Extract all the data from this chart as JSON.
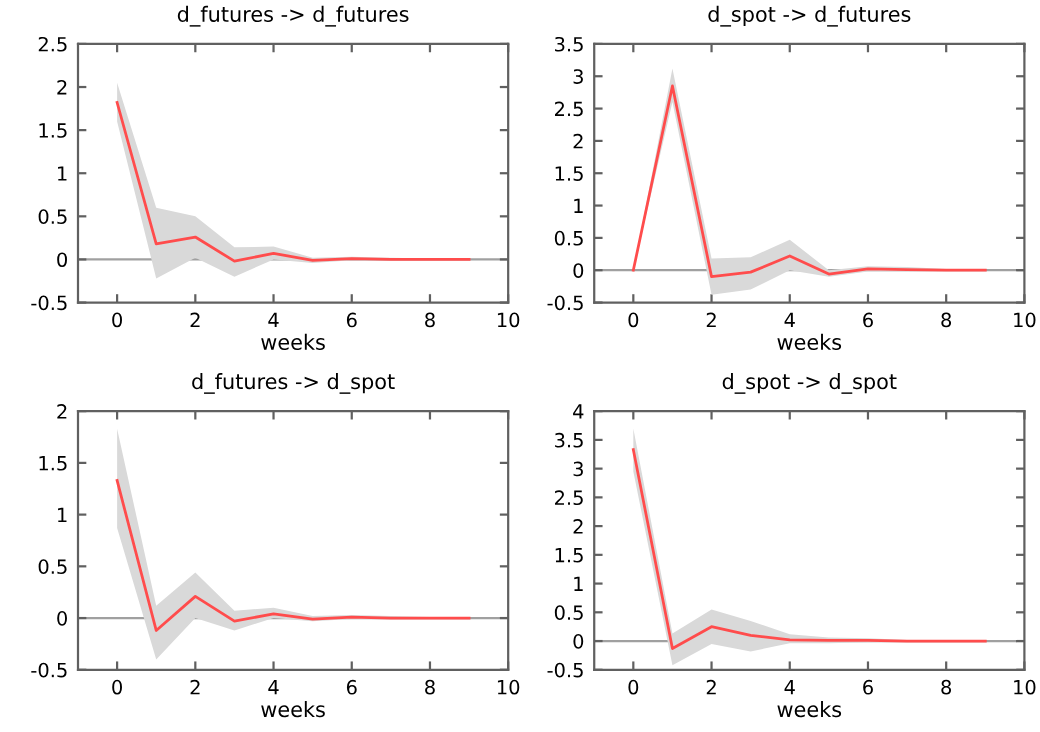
{
  "chart_data": [
    {
      "type": "line",
      "title": "d_futures -> d_futures",
      "xlabel": "weeks",
      "x": [
        0,
        1,
        2,
        3,
        4,
        5,
        6,
        7,
        8,
        9
      ],
      "xlim": [
        -1,
        10
      ],
      "xticks": [
        0,
        2,
        4,
        6,
        8,
        10
      ],
      "ylim": [
        -0.5,
        2.5
      ],
      "yticks": [
        -0.5,
        0,
        0.5,
        1,
        1.5,
        2,
        2.5
      ],
      "grid": false,
      "legend": false,
      "series": [
        {
          "color": "#ff4c4c",
          "values": [
            1.82,
            0.18,
            0.26,
            -0.02,
            0.07,
            -0.01,
            0.01,
            0,
            0,
            0
          ],
          "lower": [
            1.6,
            -0.22,
            0.02,
            -0.2,
            0.0,
            -0.04,
            -0.01,
            -0.01,
            -0.01,
            -0.01
          ],
          "upper": [
            2.05,
            0.6,
            0.5,
            0.14,
            0.15,
            0.02,
            0.03,
            0.02,
            0.01,
            0.01
          ]
        }
      ],
      "ref_lines": [
        {
          "axis": "y",
          "value": 0,
          "color": "#a0a0a0"
        }
      ]
    },
    {
      "type": "line",
      "title": "d_spot -> d_futures",
      "xlabel": "weeks",
      "x": [
        0,
        1,
        2,
        3,
        4,
        5,
        6,
        7,
        8,
        9
      ],
      "xlim": [
        -1,
        10
      ],
      "xticks": [
        0,
        2,
        4,
        6,
        8,
        10
      ],
      "ylim": [
        -0.5,
        3.5
      ],
      "yticks": [
        -0.5,
        0,
        0.5,
        1,
        1.5,
        2,
        2.5,
        3,
        3.5
      ],
      "grid": false,
      "legend": false,
      "series": [
        {
          "color": "#ff4c4c",
          "values": [
            0,
            2.85,
            -0.1,
            -0.03,
            0.22,
            -0.06,
            0.02,
            0.01,
            0,
            0
          ],
          "lower": [
            0,
            2.6,
            -0.38,
            -0.3,
            0.0,
            -0.1,
            -0.02,
            -0.02,
            -0.01,
            -0.01
          ],
          "upper": [
            0,
            3.12,
            0.18,
            0.2,
            0.47,
            0.0,
            0.06,
            0.05,
            0.02,
            0.01
          ]
        }
      ],
      "ref_lines": [
        {
          "axis": "y",
          "value": 0,
          "color": "#a0a0a0"
        }
      ]
    },
    {
      "type": "line",
      "title": "d_futures -> d_spot",
      "xlabel": "weeks",
      "x": [
        0,
        1,
        2,
        3,
        4,
        5,
        6,
        7,
        8,
        9
      ],
      "xlim": [
        -1,
        10
      ],
      "xticks": [
        0,
        2,
        4,
        6,
        8,
        10
      ],
      "ylim": [
        -0.5,
        2
      ],
      "yticks": [
        -0.5,
        0,
        0.5,
        1,
        1.5,
        2
      ],
      "grid": false,
      "legend": false,
      "series": [
        {
          "color": "#ff4c4c",
          "values": [
            1.33,
            -0.12,
            0.21,
            -0.03,
            0.04,
            -0.01,
            0.01,
            0,
            0,
            0
          ],
          "lower": [
            0.87,
            -0.4,
            0.0,
            -0.12,
            0.0,
            -0.03,
            -0.01,
            -0.01,
            -0.01,
            -0.01
          ],
          "upper": [
            1.83,
            0.12,
            0.44,
            0.07,
            0.1,
            0.02,
            0.03,
            0.02,
            0.01,
            0.01
          ]
        }
      ],
      "ref_lines": [
        {
          "axis": "y",
          "value": 0,
          "color": "#a0a0a0"
        }
      ]
    },
    {
      "type": "line",
      "title": "d_spot -> d_spot",
      "xlabel": "weeks",
      "x": [
        0,
        1,
        2,
        3,
        4,
        5,
        6,
        7,
        8,
        9
      ],
      "xlim": [
        -1,
        10
      ],
      "xticks": [
        0,
        2,
        4,
        6,
        8,
        10
      ],
      "ylim": [
        -0.5,
        4
      ],
      "yticks": [
        -0.5,
        0,
        0.5,
        1,
        1.5,
        2,
        2.5,
        3,
        3.5,
        4
      ],
      "grid": false,
      "legend": false,
      "series": [
        {
          "color": "#ff4c4c",
          "values": [
            3.33,
            -0.13,
            0.25,
            0.1,
            0.02,
            0.01,
            0.01,
            0,
            0,
            0
          ],
          "lower": [
            2.95,
            -0.42,
            -0.05,
            -0.18,
            -0.04,
            -0.04,
            -0.02,
            -0.01,
            -0.01,
            -0.01
          ],
          "upper": [
            3.7,
            0.13,
            0.55,
            0.35,
            0.12,
            0.06,
            0.05,
            0.02,
            0.01,
            0.01
          ]
        }
      ],
      "ref_lines": [
        {
          "axis": "y",
          "value": 0,
          "color": "#a0a0a0"
        }
      ]
    }
  ]
}
